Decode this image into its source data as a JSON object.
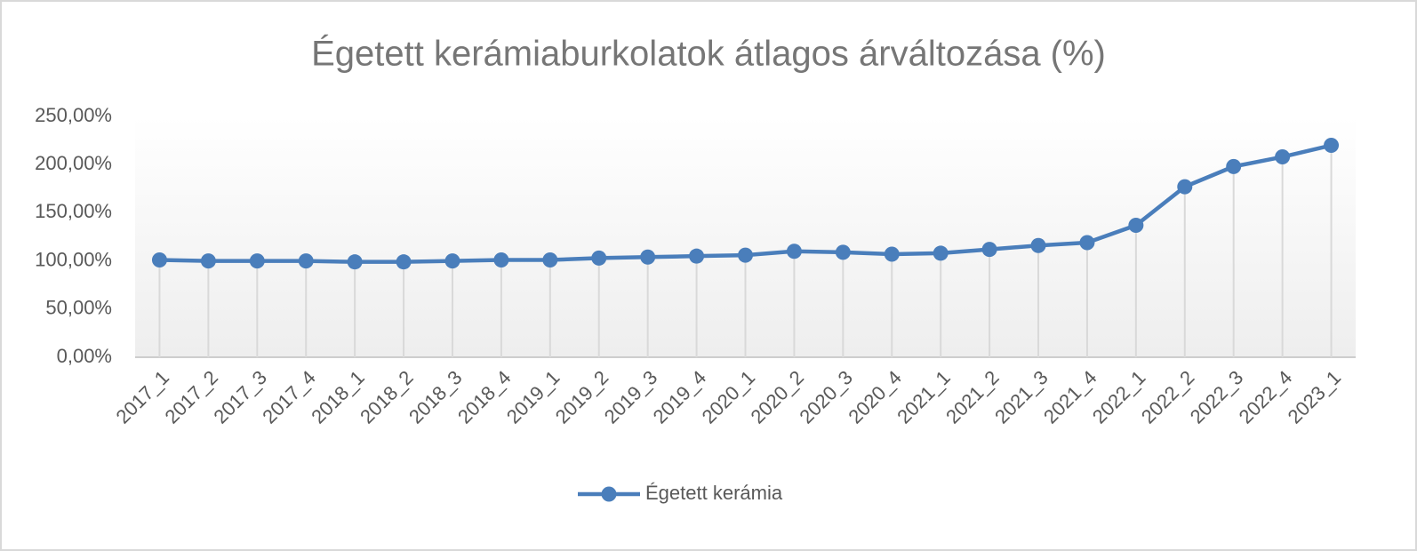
{
  "chart_data": {
    "type": "line",
    "title": "Égetett kerámiaburkolatok átlagos árváltozása (%)",
    "categories": [
      "2017_1",
      "2017_2",
      "2017_3",
      "2017_4",
      "2018_1",
      "2018_2",
      "2018_3",
      "2018_4",
      "2019_1",
      "2019_2",
      "2019_3",
      "2019_4",
      "2020_1",
      "2020_2",
      "2020_3",
      "2020_4",
      "2021_1",
      "2021_2",
      "2021_3",
      "2021_4",
      "2022_1",
      "2022_2",
      "2022_3",
      "2022_4",
      "2023_1"
    ],
    "series": [
      {
        "name": "Égetett kerámia",
        "color": "#4a7ebb",
        "values": [
          101,
          100,
          100,
          100,
          99,
          99,
          100,
          101,
          101,
          103,
          104,
          105,
          106,
          110,
          109,
          107,
          108,
          112,
          116,
          119,
          137,
          177,
          198,
          208,
          220
        ]
      }
    ],
    "ylim": [
      0,
      250
    ],
    "yticks": [
      {
        "value": 0,
        "label": "0,00%"
      },
      {
        "value": 50,
        "label": "50,00%"
      },
      {
        "value": 100,
        "label": "100,00%"
      },
      {
        "value": 150,
        "label": "150,00%"
      },
      {
        "value": 200,
        "label": "200,00%"
      },
      {
        "value": 250,
        "label": "250,00%"
      }
    ],
    "drop_lines": true,
    "legend": "bottom"
  }
}
